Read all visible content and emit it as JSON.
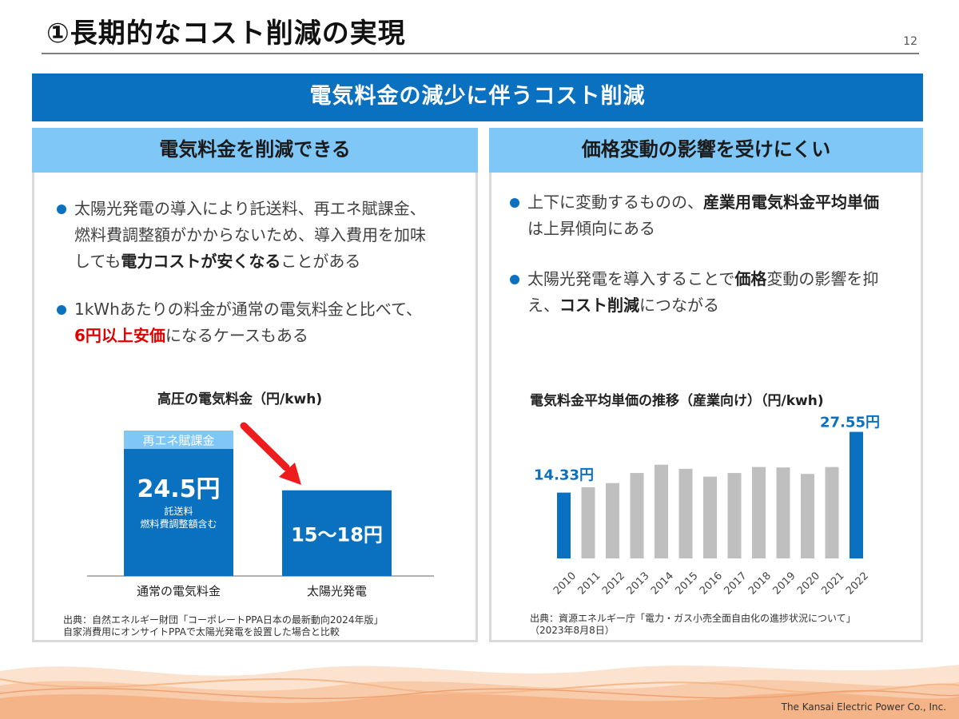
{
  "header": {
    "title": "①長期的なコスト削減の実現",
    "page_number": "12"
  },
  "banner": {
    "text": "電気料金の減少に伴うコスト削減"
  },
  "left_panel": {
    "heading": "電気料金を削減できる",
    "bullet1": {
      "line1": "太陽光発電の導入により託送料、再エネ賦課金、",
      "line2": "燃料費調整額がかからないため、導入費用を加味",
      "line3_pre": "しても",
      "line3_bold": "電力コストが安くなる",
      "line3_post": "ことがある"
    },
    "bullet2": {
      "line1": "1kWhあたりの料金が通常の電気料金と比べて、",
      "line2_red": "6円以上安価",
      "line2_post": "になるケースもある"
    },
    "chart_title": "高圧の電気料金（円/kwh)",
    "source_line1": "出典：自然エネルギー財団「コーポレートPPA日本の最新動向2024年版」",
    "source_line2": "自家消費用にオンサイトPPAで太陽光発電を設置した場合と比較"
  },
  "right_panel": {
    "heading": "価格変動の影響を受けにくい",
    "bullet1": {
      "line1_pre": "上下に変動するものの、",
      "line1_bold": "産業用電気料金平均単価",
      "line2": "は上昇傾向にある"
    },
    "bullet2": {
      "line1_pre": "太陽光発電を導入することで",
      "line1_bold": "価格",
      "line1_post": "変動の影響を抑",
      "line2_pre": "え、",
      "line2_bold": "コスト削減",
      "line2_post": "につながる"
    },
    "chart_title": "電気料金平均単価の推移（産業向け）（円/kwh)",
    "source_line1": "出典：資源エネルギー庁「電力・ガス小売全面自由化の進捗状況について」",
    "source_line2": "（2023年8月8日）"
  },
  "footer": {
    "company": "The Kansai Electric Power Co., Inc."
  },
  "colors": {
    "accent_blue": "#0a70c0",
    "light_blue": "#7fc7f7",
    "gray_bar": "#bfbfbf",
    "arrow_red": "#ee1c1c",
    "highlight_red": "#e00000"
  },
  "chart_data": [
    {
      "type": "bar",
      "title": "高圧の電気料金（円/kwh)",
      "categories": [
        "通常の電気料金",
        "太陽光発電"
      ],
      "series": [
        {
          "name": "",
          "values": [
            24.5,
            16.5
          ]
        },
        {
          "name": "再エネ賦課金",
          "values": [
            3.5,
            0
          ]
        }
      ],
      "data_labels": [
        "24.5円",
        "15〜18円"
      ],
      "sub_label_line1": "託送料",
      "sub_label_line2": "燃料費調整額含む",
      "ylim": [
        0,
        30
      ]
    },
    {
      "type": "bar",
      "title": "電気料金平均単価の推移（産業向け）（円/kwh)",
      "categories": [
        "2010",
        "2011",
        "2012",
        "2013",
        "2014",
        "2015",
        "2016",
        "2017",
        "2018",
        "2019",
        "2020",
        "2021",
        "2022"
      ],
      "values": [
        14.33,
        15.5,
        16.4,
        18.6,
        20.4,
        19.5,
        17.8,
        18.6,
        19.9,
        19.8,
        18.4,
        19.9,
        27.55
      ],
      "highlight": [
        "blue",
        "gray",
        "gray",
        "gray",
        "gray",
        "gray",
        "gray",
        "gray",
        "gray",
        "gray",
        "gray",
        "gray",
        "blue"
      ],
      "data_labels": {
        "first": "14.33円",
        "last": "27.55円"
      },
      "ylim": [
        0,
        30
      ]
    }
  ]
}
